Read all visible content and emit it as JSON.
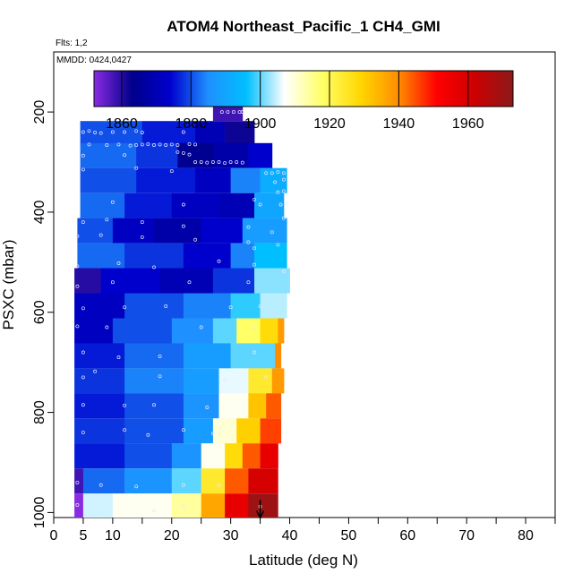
{
  "chart_data": {
    "type": "heatmap",
    "title": "ATOM4 Northeast_Pacific_1 CH4_GMI",
    "annotations": [
      "Flts: 1,2",
      "MMDD: 0424,0427"
    ],
    "xlabel": "Latitude (deg N)",
    "ylabel": "PSXC (mbar)",
    "xlim": [
      0,
      85
    ],
    "ylim": [
      1010,
      80
    ],
    "y_reversed": true,
    "x_ticks": [
      0,
      5,
      10,
      20,
      30,
      40,
      50,
      60,
      70,
      80
    ],
    "x_tick_labels": [
      "0",
      "5",
      "10",
      "20",
      "30",
      "40",
      "50",
      "60",
      "70",
      "80"
    ],
    "x_minor_ticks": [
      15,
      25,
      35,
      45,
      55,
      65,
      75,
      85
    ],
    "y_ticks": [
      200,
      400,
      600,
      800,
      1000
    ],
    "y_tick_labels": [
      "200",
      "400",
      "600",
      "800",
      "1000"
    ],
    "colorbar": {
      "range": [
        1852,
        1973
      ],
      "ticks": [
        1860,
        1880,
        1900,
        1920,
        1940,
        1960
      ],
      "tick_labels": [
        "1860",
        "1880",
        "1900",
        "1920",
        "1940",
        "1960"
      ],
      "colors": [
        "#8a2be2",
        "#00008b",
        "#0000cd",
        "#1e90ff",
        "#00bfff",
        "#ffffff",
        "#ffff66",
        "#ffd700",
        "#ff8c00",
        "#ff0000",
        "#cc0000",
        "#8b1a1a"
      ]
    },
    "bands": [
      {
        "p_top": 165,
        "p_bot": 218,
        "segments": [
          {
            "lat0": 27,
            "lat1": 32,
            "value": 1858
          }
        ]
      },
      {
        "p_top": 218,
        "p_bot": 268,
        "segments": [
          {
            "lat0": 4.5,
            "lat1": 15,
            "value": 1880
          },
          {
            "lat0": 15,
            "lat1": 24,
            "value": 1876
          },
          {
            "lat0": 24,
            "lat1": 29,
            "value": 1870
          },
          {
            "lat0": 29,
            "lat1": 34,
            "value": 1862
          }
        ]
      },
      {
        "p_top": 262,
        "p_bot": 312,
        "segments": [
          {
            "lat0": 4.5,
            "lat1": 14,
            "value": 1882
          },
          {
            "lat0": 14,
            "lat1": 21,
            "value": 1878
          },
          {
            "lat0": 21,
            "lat1": 27,
            "value": 1864
          },
          {
            "lat0": 27,
            "lat1": 33,
            "value": 1868
          },
          {
            "lat0": 33,
            "lat1": 37,
            "value": 1874
          }
        ]
      },
      {
        "p_top": 312,
        "p_bot": 362,
        "segments": [
          {
            "lat0": 4.5,
            "lat1": 14,
            "value": 1880
          },
          {
            "lat0": 14,
            "lat1": 24,
            "value": 1876
          },
          {
            "lat0": 24,
            "lat1": 30,
            "value": 1872
          },
          {
            "lat0": 30,
            "lat1": 35,
            "value": 1884
          },
          {
            "lat0": 35,
            "lat1": 39.5,
            "value": 1892
          }
        ]
      },
      {
        "p_top": 362,
        "p_bot": 412,
        "segments": [
          {
            "lat0": 4.5,
            "lat1": 12,
            "value": 1882
          },
          {
            "lat0": 12,
            "lat1": 20,
            "value": 1876
          },
          {
            "lat0": 20,
            "lat1": 28,
            "value": 1872
          },
          {
            "lat0": 28,
            "lat1": 34,
            "value": 1870
          },
          {
            "lat0": 34,
            "lat1": 39,
            "value": 1890
          }
        ]
      },
      {
        "p_top": 412,
        "p_bot": 462,
        "segments": [
          {
            "lat0": 4,
            "lat1": 10,
            "value": 1880
          },
          {
            "lat0": 10,
            "lat1": 17,
            "value": 1872
          },
          {
            "lat0": 17,
            "lat1": 25,
            "value": 1868
          },
          {
            "lat0": 25,
            "lat1": 32,
            "value": 1874
          },
          {
            "lat0": 32,
            "lat1": 39.5,
            "value": 1888
          }
        ]
      },
      {
        "p_top": 462,
        "p_bot": 512,
        "segments": [
          {
            "lat0": 4,
            "lat1": 12,
            "value": 1882
          },
          {
            "lat0": 12,
            "lat1": 22,
            "value": 1878
          },
          {
            "lat0": 22,
            "lat1": 30,
            "value": 1874
          },
          {
            "lat0": 30,
            "lat1": 34,
            "value": 1884
          },
          {
            "lat0": 34,
            "lat1": 39.5,
            "value": 1896
          }
        ]
      },
      {
        "p_top": 512,
        "p_bot": 562,
        "segments": [
          {
            "lat0": 3.5,
            "lat1": 8,
            "value": 1860
          },
          {
            "lat0": 8,
            "lat1": 18,
            "value": 1874
          },
          {
            "lat0": 18,
            "lat1": 27,
            "value": 1870
          },
          {
            "lat0": 27,
            "lat1": 34,
            "value": 1878
          },
          {
            "lat0": 34,
            "lat1": 40,
            "value": 1902
          }
        ]
      },
      {
        "p_top": 562,
        "p_bot": 612,
        "segments": [
          {
            "lat0": 3.5,
            "lat1": 12,
            "value": 1872
          },
          {
            "lat0": 12,
            "lat1": 22,
            "value": 1880
          },
          {
            "lat0": 22,
            "lat1": 30,
            "value": 1884
          },
          {
            "lat0": 30,
            "lat1": 35,
            "value": 1898
          },
          {
            "lat0": 35,
            "lat1": 39.5,
            "value": 1904
          }
        ]
      },
      {
        "p_top": 612,
        "p_bot": 662,
        "segments": [
          {
            "lat0": 3.5,
            "lat1": 10,
            "value": 1872
          },
          {
            "lat0": 10,
            "lat1": 20,
            "value": 1880
          },
          {
            "lat0": 20,
            "lat1": 27,
            "value": 1885
          },
          {
            "lat0": 27,
            "lat1": 31,
            "value": 1900
          },
          {
            "lat0": 31,
            "lat1": 35,
            "value": 1918
          },
          {
            "lat0": 35,
            "lat1": 38,
            "value": 1928
          },
          {
            "lat0": 38,
            "lat1": 39,
            "value": 1938
          }
        ]
      },
      {
        "p_top": 662,
        "p_bot": 712,
        "segments": [
          {
            "lat0": 3.5,
            "lat1": 12,
            "value": 1876
          },
          {
            "lat0": 12,
            "lat1": 22,
            "value": 1882
          },
          {
            "lat0": 22,
            "lat1": 30,
            "value": 1888
          },
          {
            "lat0": 30,
            "lat1": 37.5,
            "value": 1900
          },
          {
            "lat0": 37.5,
            "lat1": 38.5,
            "value": 1940
          }
        ]
      },
      {
        "p_top": 712,
        "p_bot": 762,
        "segments": [
          {
            "lat0": 3.5,
            "lat1": 12,
            "value": 1878
          },
          {
            "lat0": 12,
            "lat1": 22,
            "value": 1884
          },
          {
            "lat0": 22,
            "lat1": 28,
            "value": 1888
          },
          {
            "lat0": 28,
            "lat1": 33,
            "value": 1906
          },
          {
            "lat0": 33,
            "lat1": 37,
            "value": 1924
          },
          {
            "lat0": 37,
            "lat1": 39,
            "value": 1938
          }
        ]
      },
      {
        "p_top": 762,
        "p_bot": 812,
        "segments": [
          {
            "lat0": 3.5,
            "lat1": 12,
            "value": 1876
          },
          {
            "lat0": 12,
            "lat1": 22,
            "value": 1880
          },
          {
            "lat0": 22,
            "lat1": 28,
            "value": 1886
          },
          {
            "lat0": 28,
            "lat1": 33,
            "value": 1908
          },
          {
            "lat0": 33,
            "lat1": 36,
            "value": 1932
          },
          {
            "lat0": 36,
            "lat1": 38.5,
            "value": 1944
          }
        ]
      },
      {
        "p_top": 812,
        "p_bot": 862,
        "segments": [
          {
            "lat0": 3.5,
            "lat1": 12,
            "value": 1878
          },
          {
            "lat0": 12,
            "lat1": 22,
            "value": 1880
          },
          {
            "lat0": 22,
            "lat1": 27,
            "value": 1888
          },
          {
            "lat0": 27,
            "lat1": 31,
            "value": 1910
          },
          {
            "lat0": 31,
            "lat1": 35,
            "value": 1930
          },
          {
            "lat0": 35,
            "lat1": 38.5,
            "value": 1946
          }
        ]
      },
      {
        "p_top": 862,
        "p_bot": 912,
        "segments": [
          {
            "lat0": 3.5,
            "lat1": 12,
            "value": 1876
          },
          {
            "lat0": 12,
            "lat1": 20,
            "value": 1880
          },
          {
            "lat0": 20,
            "lat1": 25,
            "value": 1886
          },
          {
            "lat0": 25,
            "lat1": 29,
            "value": 1908
          },
          {
            "lat0": 29,
            "lat1": 32,
            "value": 1928
          },
          {
            "lat0": 32,
            "lat1": 35,
            "value": 1944
          },
          {
            "lat0": 35,
            "lat1": 38,
            "value": 1956
          }
        ]
      },
      {
        "p_top": 912,
        "p_bot": 962,
        "segments": [
          {
            "lat0": 3.5,
            "lat1": 5,
            "value": 1858
          },
          {
            "lat0": 5,
            "lat1": 12,
            "value": 1882
          },
          {
            "lat0": 12,
            "lat1": 20,
            "value": 1886
          },
          {
            "lat0": 20,
            "lat1": 25,
            "value": 1900
          },
          {
            "lat0": 25,
            "lat1": 29,
            "value": 1924
          },
          {
            "lat0": 29,
            "lat1": 33,
            "value": 1944
          },
          {
            "lat0": 33,
            "lat1": 38,
            "value": 1960
          }
        ]
      },
      {
        "p_top": 962,
        "p_bot": 1010,
        "segments": [
          {
            "lat0": 3.5,
            "lat1": 5,
            "value": 1852
          },
          {
            "lat0": 5,
            "lat1": 10,
            "value": 1905
          },
          {
            "lat0": 10,
            "lat1": 20,
            "value": 1908
          },
          {
            "lat0": 20,
            "lat1": 25,
            "value": 1914
          },
          {
            "lat0": 25,
            "lat1": 29,
            "value": 1936
          },
          {
            "lat0": 29,
            "lat1": 33,
            "value": 1956
          },
          {
            "lat0": 33,
            "lat1": 38,
            "value": 1970
          }
        ]
      }
    ],
    "sample_points": [
      [
        28.5,
        200
      ],
      [
        29.5,
        200
      ],
      [
        30.5,
        200
      ],
      [
        31.5,
        200
      ],
      [
        32,
        200
      ],
      [
        5,
        240
      ],
      [
        6,
        238
      ],
      [
        7,
        241
      ],
      [
        8,
        242
      ],
      [
        10,
        240
      ],
      [
        12,
        240
      ],
      [
        14,
        238
      ],
      [
        15,
        241
      ],
      [
        22,
        240
      ],
      [
        6,
        265
      ],
      [
        9,
        266
      ],
      [
        11,
        265
      ],
      [
        13,
        267
      ],
      [
        14,
        266
      ],
      [
        15,
        265
      ],
      [
        16,
        264
      ],
      [
        17,
        266
      ],
      [
        18,
        265
      ],
      [
        19,
        266
      ],
      [
        20,
        265
      ],
      [
        21,
        266
      ],
      [
        23,
        264
      ],
      [
        24,
        265
      ],
      [
        21,
        280
      ],
      [
        22,
        282
      ],
      [
        23,
        285
      ],
      [
        24,
        300
      ],
      [
        25,
        300
      ],
      [
        26,
        301
      ],
      [
        27,
        300
      ],
      [
        28,
        300
      ],
      [
        29,
        302
      ],
      [
        30,
        300
      ],
      [
        31,
        300
      ],
      [
        32,
        301
      ],
      [
        5,
        287
      ],
      [
        12,
        286
      ],
      [
        36,
        322
      ],
      [
        37,
        322
      ],
      [
        38,
        320
      ],
      [
        39,
        322
      ],
      [
        37.5,
        340
      ],
      [
        39,
        335
      ],
      [
        5,
        315
      ],
      [
        14,
        312
      ],
      [
        20,
        318
      ],
      [
        38,
        360
      ],
      [
        39,
        358
      ],
      [
        34,
        375
      ],
      [
        10,
        380
      ],
      [
        22,
        385
      ],
      [
        35,
        385
      ],
      [
        38.5,
        385
      ],
      [
        5,
        420
      ],
      [
        9,
        415
      ],
      [
        15,
        420
      ],
      [
        22,
        428
      ],
      [
        33,
        430
      ],
      [
        39,
        412
      ],
      [
        37,
        440
      ],
      [
        4,
        448
      ],
      [
        8,
        446
      ],
      [
        15,
        450
      ],
      [
        24,
        455
      ],
      [
        33,
        460
      ],
      [
        34,
        472
      ],
      [
        38,
        465
      ],
      [
        4,
        508
      ],
      [
        11,
        502
      ],
      [
        17,
        510
      ],
      [
        28,
        498
      ],
      [
        34,
        505
      ],
      [
        39,
        518
      ],
      [
        4,
        548
      ],
      [
        10,
        540
      ],
      [
        23,
        540
      ],
      [
        33,
        540
      ],
      [
        5,
        592
      ],
      [
        12,
        590
      ],
      [
        19,
        588
      ],
      [
        30,
        590
      ],
      [
        35,
        588
      ],
      [
        4,
        628
      ],
      [
        9,
        630
      ],
      [
        25,
        630
      ],
      [
        34,
        632
      ],
      [
        5,
        680
      ],
      [
        11,
        690
      ],
      [
        18,
        688
      ],
      [
        34,
        680
      ],
      [
        5,
        730
      ],
      [
        7,
        718
      ],
      [
        18,
        728
      ],
      [
        29,
        735
      ],
      [
        36,
        730
      ],
      [
        5,
        785
      ],
      [
        12,
        786
      ],
      [
        17,
        785
      ],
      [
        26,
        790
      ],
      [
        5,
        840
      ],
      [
        12,
        835
      ],
      [
        16,
        845
      ],
      [
        22,
        835
      ],
      [
        27,
        842
      ],
      [
        4,
        940
      ],
      [
        8,
        945
      ],
      [
        14,
        948
      ],
      [
        22,
        945
      ],
      [
        28,
        945
      ],
      [
        4,
        985
      ],
      [
        17,
        996
      ],
      [
        22,
        988
      ],
      [
        35,
        988
      ]
    ],
    "marker": {
      "lat": 35,
      "p": 1000
    }
  }
}
